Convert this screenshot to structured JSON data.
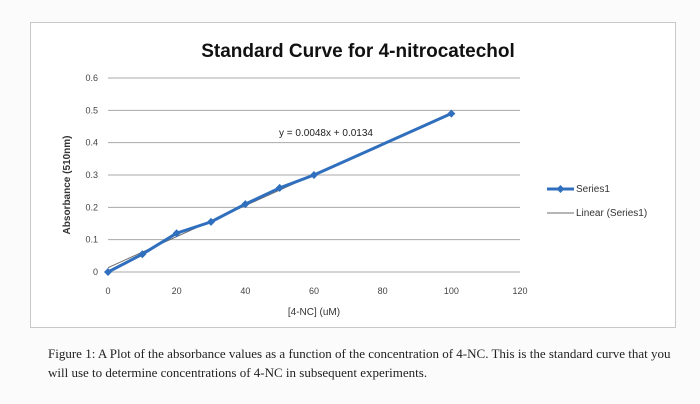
{
  "chart_data": {
    "type": "scatter",
    "title": "Standard Curve for 4-nitrocatechol",
    "xlabel": "[4-NC] (uM)",
    "ylabel": "Absorbance (510nm)",
    "xlim": [
      0,
      120
    ],
    "ylim": [
      0,
      0.6
    ],
    "x_ticks": [
      "0",
      "20",
      "40",
      "60",
      "80",
      "100",
      "120"
    ],
    "y_ticks": [
      "0",
      "0.1",
      "0.2",
      "0.3",
      "0.4",
      "0.5",
      "0.6"
    ],
    "grid": true,
    "legend_position": "right",
    "series": [
      {
        "name": "Series1",
        "color": "#2f6fbe",
        "x": [
          0,
          10,
          20,
          30,
          40,
          50,
          60,
          100
        ],
        "y": [
          0.0,
          0.055,
          0.12,
          0.155,
          0.21,
          0.26,
          0.3,
          0.49
        ]
      },
      {
        "name": "Linear (Series1)",
        "color": "#6b6b6b",
        "type": "trendline",
        "slope": 0.0048,
        "intercept": 0.0134
      }
    ],
    "equation": "y = 0.0048x + 0.0134"
  },
  "caption": "Figure 1: A Plot of the absorbance values as a function of the concentration of 4-NC. This is the standard curve that you will use to determine concentrations of 4-NC in subsequent experiments."
}
